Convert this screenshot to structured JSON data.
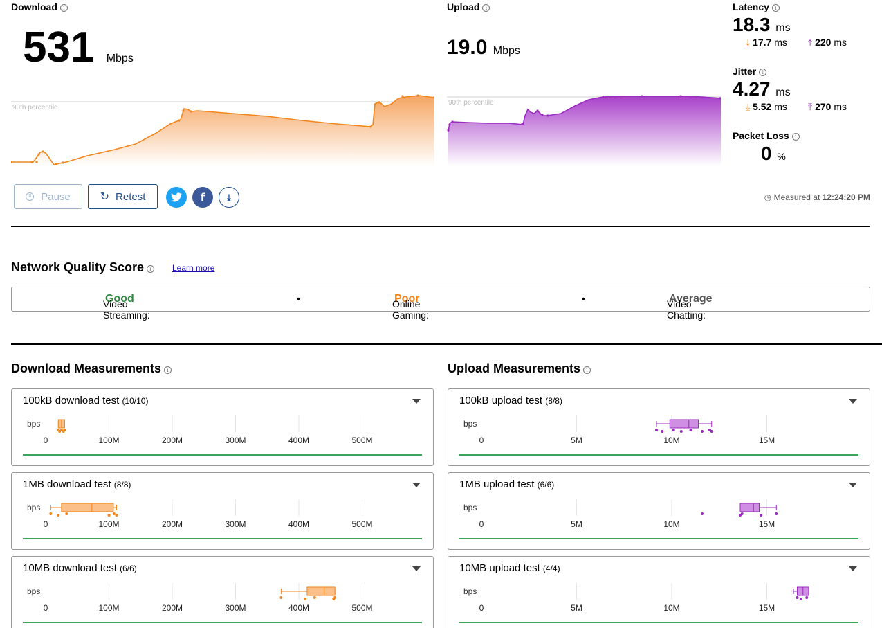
{
  "download": {
    "label": "Download",
    "value": "531",
    "unit": "Mbps",
    "percentile_label": "90th percentile"
  },
  "upload": {
    "label": "Upload",
    "value": "19.0",
    "unit": "Mbps",
    "percentile_label": "90th percentile"
  },
  "latency": {
    "label": "Latency",
    "value": "18.3",
    "unit": "ms",
    "down": "17.7",
    "down_unit": "ms",
    "up": "220",
    "up_unit": "ms"
  },
  "jitter": {
    "label": "Jitter",
    "value": "4.27",
    "unit": "ms",
    "down": "5.52",
    "down_unit": "ms",
    "up": "270",
    "up_unit": "ms"
  },
  "packet_loss": {
    "label": "Packet Loss",
    "value": "0",
    "unit": "%"
  },
  "buttons": {
    "pause": "Pause",
    "retest": "Retest"
  },
  "measured": {
    "prefix": "Measured at",
    "time": "12:24:20 PM"
  },
  "nqs": {
    "title": "Network Quality Score",
    "learn_more": "Learn more",
    "items": [
      {
        "label": "Video Streaming:",
        "value": "Good",
        "color": "#2e8b3e"
      },
      {
        "label": "Online Gaming:",
        "value": "Poor",
        "color": "#f0861d"
      },
      {
        "label": "Video Chatting:",
        "value": "Average",
        "color": "#555555"
      }
    ],
    "separator": "•"
  },
  "sections": {
    "download_title": "Download Measurements",
    "upload_title": "Upload Measurements"
  },
  "colors": {
    "download": "#f0861d",
    "download_fill": "#fbbf8a",
    "upload": "#9b2bbf",
    "upload_fill": "#cf8fe3",
    "green": "#3aa55b"
  },
  "axis_unit": "bps",
  "download_tests": {
    "ticks": [
      "0",
      "100M",
      "200M",
      "300M",
      "400M",
      "500M"
    ],
    "tick_values": [
      0,
      100,
      200,
      300,
      400,
      500
    ],
    "tests": [
      {
        "name": "100kB download test",
        "count": "(10/10)",
        "box": {
          "min": 20,
          "q1": 20,
          "median": 25,
          "q3": 30,
          "max": 30
        },
        "points": [
          20,
          22,
          25,
          28,
          30
        ]
      },
      {
        "name": "1MB download test",
        "count": "(8/8)",
        "box": {
          "min": 8,
          "q1": 25,
          "median": 73,
          "q3": 107,
          "max": 112
        },
        "points": [
          8,
          20,
          33,
          100,
          108,
          112
        ]
      },
      {
        "name": "10MB download test",
        "count": "(6/6)",
        "box": {
          "min": 372,
          "q1": 413,
          "median": 440,
          "q3": 457,
          "max": 457
        },
        "points": [
          372,
          410,
          425,
          455,
          457
        ]
      }
    ]
  },
  "upload_tests": {
    "ticks": [
      "0",
      "5M",
      "10M",
      "15M"
    ],
    "tick_values": [
      0,
      5,
      10,
      15
    ],
    "tests": [
      {
        "name": "100kB upload test",
        "count": "(8/8)",
        "box": {
          "min": 9.2,
          "q1": 9.9,
          "median": 10.9,
          "q3": 11.4,
          "max": 12.1
        },
        "points": [
          9.2,
          9.5,
          10.1,
          10.5,
          11.0,
          11.6,
          12.0,
          12.1
        ]
      },
      {
        "name": "1MB upload test",
        "count": "(6/6)",
        "box": {
          "min": 13.6,
          "q1": 13.6,
          "median": 14.3,
          "q3": 14.6,
          "max": 15.5
        },
        "points": [
          11.6,
          13.6,
          13.7,
          14.7,
          15.5
        ]
      },
      {
        "name": "10MB upload test",
        "count": "(4/4)",
        "box": {
          "min": 16.4,
          "q1": 16.6,
          "median": 16.9,
          "q3": 17.2,
          "max": 17.2
        },
        "points": [
          16.6,
          16.8,
          17.1
        ]
      }
    ]
  }
}
